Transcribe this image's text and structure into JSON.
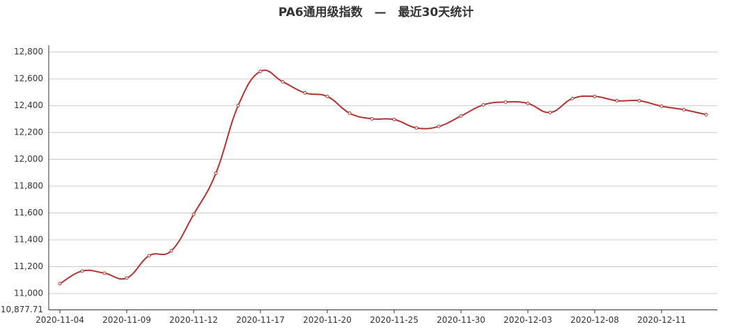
{
  "chart_data": {
    "type": "line",
    "title": "PA6通用级指数　—　最近30天统计",
    "categories": [
      "2020-11-04",
      null,
      null,
      "2020-11-09",
      null,
      null,
      "2020-11-12",
      null,
      null,
      "2020-11-17",
      null,
      null,
      "2020-11-20",
      null,
      null,
      "2020-11-25",
      null,
      null,
      "2020-11-30",
      null,
      null,
      "2020-12-03",
      null,
      null,
      "2020-12-08",
      null,
      null,
      "2020-12-11",
      null,
      null
    ],
    "series": [
      {
        "color": "#b23330",
        "values": [
          11073,
          11167,
          11151,
          11115,
          11281,
          11318,
          11589,
          11896,
          12401,
          12656,
          12578,
          12495,
          12469,
          12344,
          12302,
          12297,
          12234,
          12245,
          12323,
          12406,
          12427,
          12417,
          12349,
          12453,
          12469,
          12437,
          12437,
          12396,
          12370,
          12333
        ]
      }
    ],
    "ylim": [
      10877.71,
      12850
    ],
    "yticks": [
      {
        "value": 10877.71,
        "label": "10,877.71"
      },
      {
        "value": 11000,
        "label": "11,000"
      },
      {
        "value": 11200,
        "label": "11,200"
      },
      {
        "value": 11400,
        "label": "11,400"
      },
      {
        "value": 11600,
        "label": "11,600"
      },
      {
        "value": 11800,
        "label": "11,800"
      },
      {
        "value": 12000,
        "label": "12,000"
      },
      {
        "value": 12200,
        "label": "12,200"
      },
      {
        "value": 12400,
        "label": "12,400"
      },
      {
        "value": 12600,
        "label": "12,600"
      },
      {
        "value": 12800,
        "label": "12,800"
      }
    ],
    "grid": true
  }
}
